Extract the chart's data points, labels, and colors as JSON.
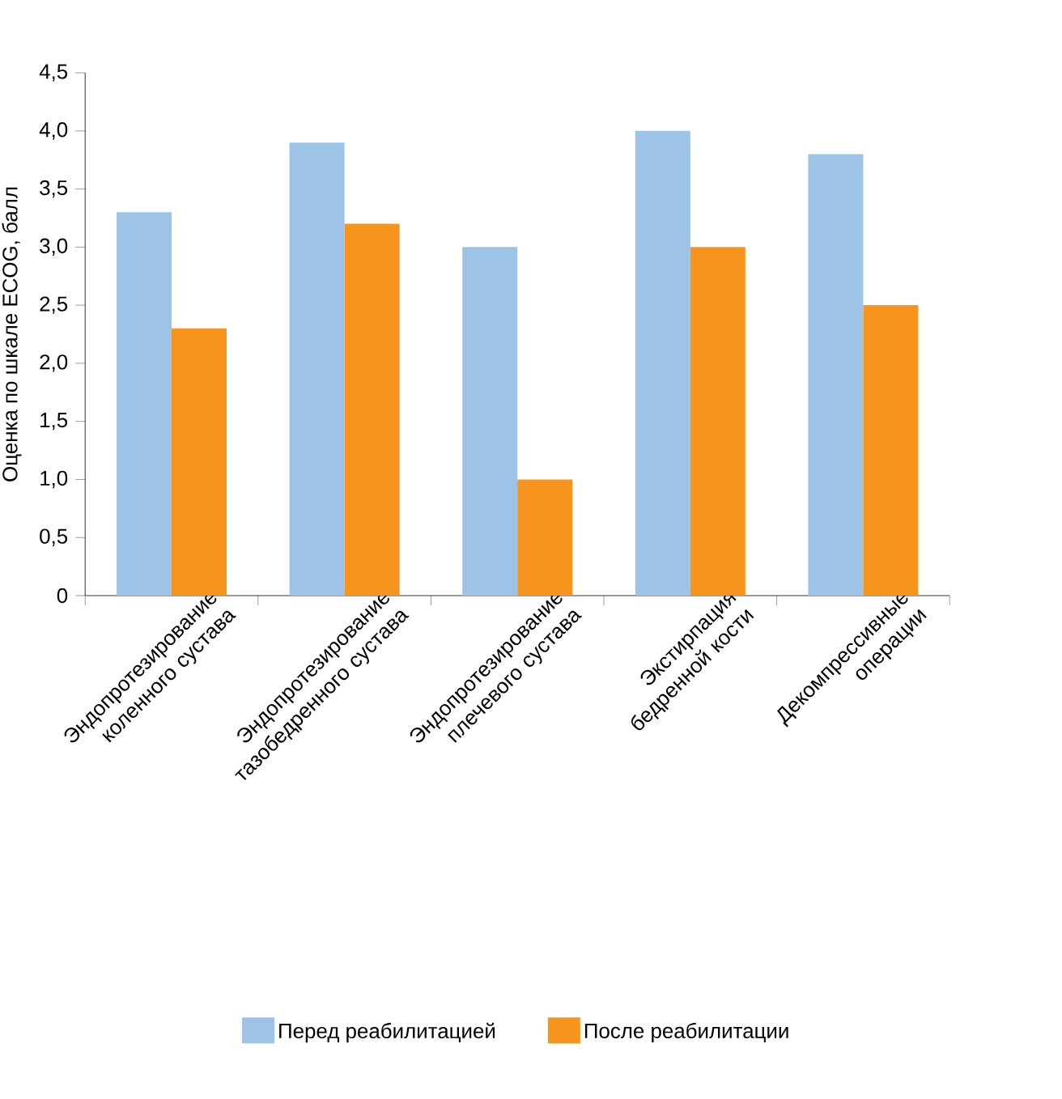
{
  "chart_data": {
    "type": "bar",
    "ylabel": "Оценка по шкале ECOG, балл",
    "categories": [
      "Эндопротезирование коленного сустава",
      "Эндопротезирование тазобедренного сустава",
      "Эндопротезирование плечевого сустава",
      "Экстирпация бедренной кости",
      "Декомпрессивные операции"
    ],
    "series": [
      {
        "name": "Перед реабилитацией",
        "color": "#9dc3e6",
        "values": [
          3.3,
          3.9,
          3.0,
          4.0,
          3.8
        ]
      },
      {
        "name": "После реабилитации",
        "color": "#f7941d",
        "values": [
          2.3,
          3.2,
          1.0,
          3.0,
          2.5
        ]
      }
    ],
    "ylim": [
      0,
      4.5
    ],
    "yticks": [
      0,
      {
        "value": 0.5,
        "label": "0,5"
      },
      {
        "value": 1,
        "label": "1,0"
      },
      {
        "value": 1.5,
        "label": "1,5"
      },
      {
        "value": 2,
        "label": "2,0"
      },
      {
        "value": 2.5,
        "label": "2,5"
      },
      {
        "value": 3,
        "label": "3,0"
      },
      {
        "value": 3.5,
        "label": "3,5"
      },
      {
        "value": 4,
        "label": "4,0"
      },
      {
        "value": 4.5,
        "label": "4,5"
      }
    ],
    "legend": "bottom",
    "grid": false
  }
}
